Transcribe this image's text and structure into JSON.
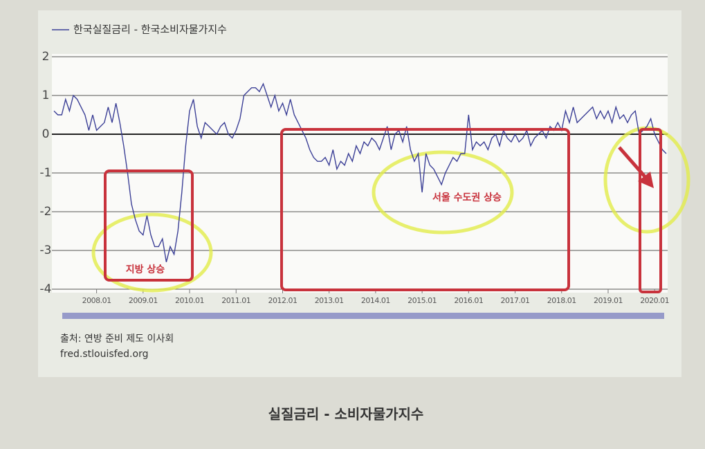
{
  "chart_data": {
    "type": "line",
    "x": [
      "2007.02",
      "2007.03",
      "2007.04",
      "2007.05",
      "2007.06",
      "2007.07",
      "2007.08",
      "2007.09",
      "2007.10",
      "2007.11",
      "2007.12",
      "2008.01",
      "2008.02",
      "2008.03",
      "2008.04",
      "2008.05",
      "2008.06",
      "2008.07",
      "2008.08",
      "2008.09",
      "2008.10",
      "2008.11",
      "2008.12",
      "2009.01",
      "2009.02",
      "2009.03",
      "2009.04",
      "2009.05",
      "2009.06",
      "2009.07",
      "2009.08",
      "2009.09",
      "2009.10",
      "2009.11",
      "2009.12",
      "2010.01",
      "2010.02",
      "2010.03",
      "2010.04",
      "2010.05",
      "2010.06",
      "2010.07",
      "2010.08",
      "2010.09",
      "2010.10",
      "2010.11",
      "2010.12",
      "2011.01",
      "2011.02",
      "2011.03",
      "2011.04",
      "2011.05",
      "2011.06",
      "2011.07",
      "2011.08",
      "2011.09",
      "2011.10",
      "2011.11",
      "2011.12",
      "2012.01",
      "2012.02",
      "2012.03",
      "2012.04",
      "2012.05",
      "2012.06",
      "2012.07",
      "2012.08",
      "2012.09",
      "2012.10",
      "2012.11",
      "2012.12",
      "2013.01",
      "2013.02",
      "2013.03",
      "2013.04",
      "2013.05",
      "2013.06",
      "2013.07",
      "2013.08",
      "2013.09",
      "2013.10",
      "2013.11",
      "2013.12",
      "2014.01",
      "2014.02",
      "2014.03",
      "2014.04",
      "2014.05",
      "2014.06",
      "2014.07",
      "2014.08",
      "2014.09",
      "2014.10",
      "2014.11",
      "2014.12",
      "2015.01",
      "2015.02",
      "2015.03",
      "2015.04",
      "2015.05",
      "2015.06",
      "2015.07",
      "2015.08",
      "2015.09",
      "2015.10",
      "2015.11",
      "2015.12",
      "2016.01",
      "2016.02",
      "2016.03",
      "2016.04",
      "2016.05",
      "2016.06",
      "2016.07",
      "2016.08",
      "2016.09",
      "2016.10",
      "2016.11",
      "2016.12",
      "2017.01",
      "2017.02",
      "2017.03",
      "2017.04",
      "2017.05",
      "2017.06",
      "2017.07",
      "2017.08",
      "2017.09",
      "2017.10",
      "2017.11",
      "2017.12",
      "2018.01",
      "2018.02",
      "2018.03",
      "2018.04",
      "2018.05",
      "2018.06",
      "2018.07",
      "2018.08",
      "2018.09",
      "2018.10",
      "2018.11",
      "2018.12",
      "2019.01",
      "2019.02",
      "2019.03",
      "2019.04",
      "2019.05",
      "2019.06",
      "2019.07",
      "2019.08",
      "2019.09",
      "2019.10",
      "2019.11",
      "2019.12",
      "2020.01",
      "2020.02",
      "2020.03",
      "2020.04"
    ],
    "series": [
      {
        "name": "한국실질금리 - 한국소비자물가지수",
        "color": "#3b3f96",
        "values": [
          0.6,
          0.5,
          0.5,
          0.9,
          0.6,
          1.0,
          0.9,
          0.7,
          0.5,
          0.1,
          0.5,
          0.1,
          0.2,
          0.3,
          0.7,
          0.3,
          0.8,
          0.3,
          -0.3,
          -1.0,
          -1.8,
          -2.2,
          -2.5,
          -2.6,
          -2.1,
          -2.6,
          -2.9,
          -2.9,
          -2.7,
          -3.3,
          -2.9,
          -3.1,
          -2.5,
          -1.5,
          -0.3,
          0.6,
          0.9,
          0.2,
          -0.1,
          0.3,
          0.2,
          0.1,
          0.0,
          0.2,
          0.3,
          0.0,
          -0.1,
          0.1,
          0.4,
          1.0,
          1.1,
          1.2,
          1.2,
          1.1,
          1.3,
          1.0,
          0.7,
          1.0,
          0.6,
          0.8,
          0.5,
          0.9,
          0.5,
          0.3,
          0.1,
          -0.1,
          -0.4,
          -0.6,
          -0.7,
          -0.7,
          -0.6,
          -0.8,
          -0.4,
          -0.9,
          -0.7,
          -0.8,
          -0.5,
          -0.7,
          -0.3,
          -0.5,
          -0.2,
          -0.3,
          -0.1,
          -0.2,
          -0.4,
          -0.1,
          0.2,
          -0.4,
          0.0,
          0.1,
          -0.2,
          0.2,
          -0.4,
          -0.7,
          -0.5,
          -1.5,
          -0.5,
          -0.8,
          -0.9,
          -1.1,
          -1.3,
          -1.0,
          -0.8,
          -0.6,
          -0.7,
          -0.5,
          -0.5,
          0.5,
          -0.4,
          -0.2,
          -0.3,
          -0.2,
          -0.4,
          -0.1,
          0.0,
          -0.3,
          0.1,
          -0.1,
          -0.2,
          0.0,
          -0.2,
          -0.1,
          0.1,
          -0.3,
          -0.1,
          0.0,
          0.1,
          -0.1,
          0.2,
          0.1,
          0.3,
          0.1,
          0.6,
          0.3,
          0.7,
          0.3,
          0.4,
          0.5,
          0.6,
          0.7,
          0.4,
          0.6,
          0.4,
          0.6,
          0.3,
          0.7,
          0.4,
          0.5,
          0.3,
          0.5,
          0.6,
          0.0,
          0.1,
          0.2,
          0.4,
          0.0,
          -0.2,
          -0.4,
          -0.5
        ]
      }
    ],
    "ylim": [
      -4,
      2
    ],
    "yticks": [
      -4,
      -3,
      -2,
      -1,
      0,
      1,
      2
    ],
    "xticks": [
      "2008.01",
      "2009.01",
      "2010.01",
      "2011.01",
      "2012.01",
      "2013.01",
      "2014.01",
      "2015.01",
      "2016.01",
      "2017.01",
      "2018.01",
      "2019.01",
      "2020.01"
    ],
    "grid": true,
    "annotations": [
      "지방 상승",
      "서울 수도권 상승"
    ],
    "source": "출처: 연방 준비 제도 이사회",
    "source_url": "fred.stlouisfed.org",
    "caption": "실질금리 - 소비자물가지수"
  }
}
